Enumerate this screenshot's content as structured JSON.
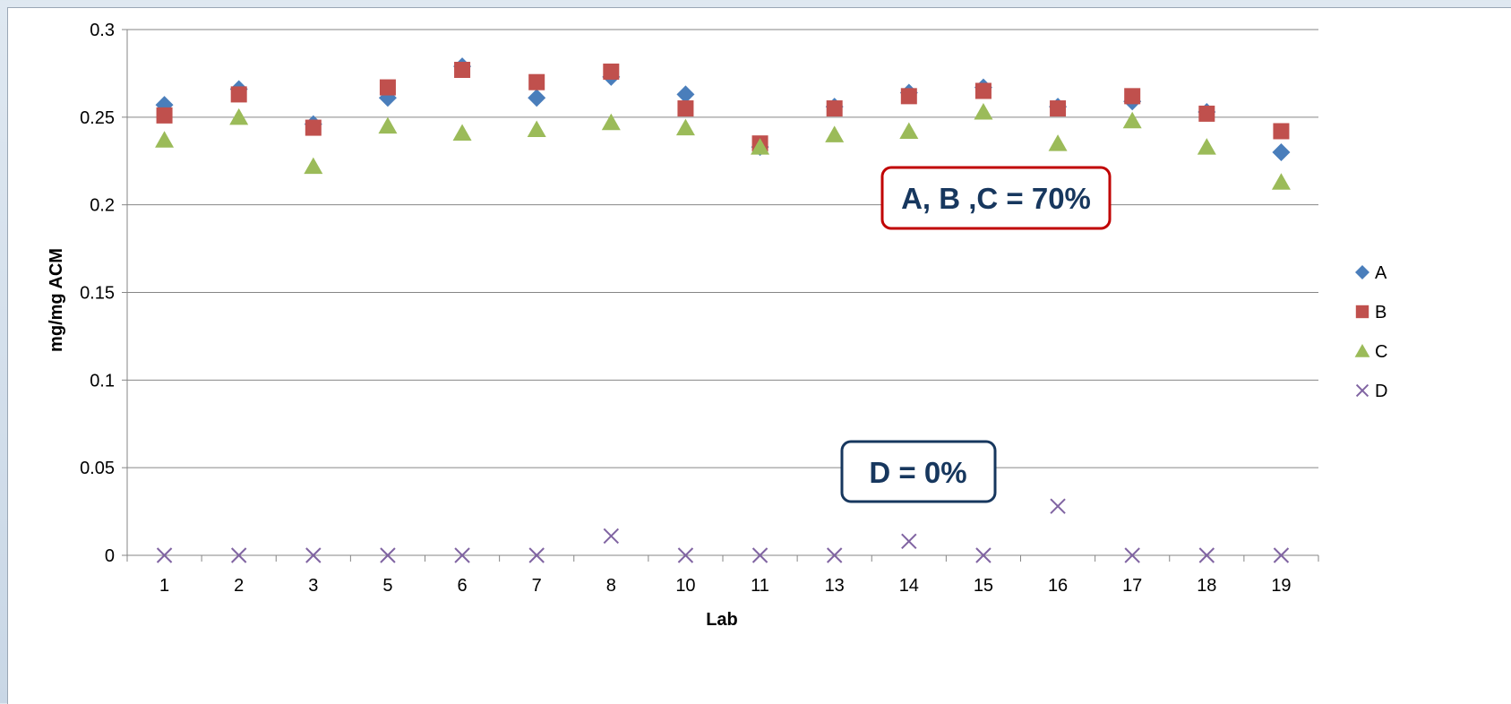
{
  "chart_data": {
    "type": "scatter",
    "xlabel": "Lab",
    "ylabel": "mg/mg ACM",
    "ylim": [
      0,
      0.3
    ],
    "yticks": [
      "0.3",
      "0.25",
      "0.2",
      "0.15",
      "0.1",
      "0.05",
      "0"
    ],
    "categories": [
      "1",
      "2",
      "3",
      "5",
      "6",
      "7",
      "8",
      "10",
      "11",
      "13",
      "14",
      "15",
      "16",
      "17",
      "18",
      "19"
    ],
    "grid": true,
    "legend_position": "right",
    "series": [
      {
        "name": "A",
        "marker": "diamond",
        "color": "#4a7ebb",
        "values": [
          0.257,
          0.266,
          0.246,
          0.261,
          0.279,
          0.261,
          0.273,
          0.263,
          0.233,
          0.256,
          0.264,
          0.267,
          0.256,
          0.259,
          0.253,
          0.23
        ]
      },
      {
        "name": "B",
        "marker": "square",
        "color": "#c0504d",
        "values": [
          0.251,
          0.263,
          0.244,
          0.267,
          0.277,
          0.27,
          0.276,
          0.255,
          0.235,
          0.255,
          0.262,
          0.265,
          0.255,
          0.262,
          0.252,
          0.242
        ]
      },
      {
        "name": "C",
        "marker": "triangle",
        "color": "#9bbb59",
        "values": [
          0.237,
          0.25,
          0.222,
          0.245,
          0.241,
          0.243,
          0.247,
          0.244,
          0.233,
          0.24,
          0.242,
          0.253,
          0.235,
          0.248,
          0.233,
          0.213
        ]
      },
      {
        "name": "D",
        "marker": "x",
        "color": "#8064a2",
        "values": [
          0,
          0,
          0,
          0,
          0,
          0,
          0.011,
          0,
          0,
          0,
          0.008,
          0,
          0.028,
          0,
          0,
          0
        ]
      }
    ],
    "annotations": [
      {
        "text": "A, B ,C = 70%",
        "color": "#c00000",
        "text_color": "#17375e"
      },
      {
        "text": "D = 0%",
        "color": "#17375e",
        "text_color": "#17375e"
      }
    ]
  }
}
